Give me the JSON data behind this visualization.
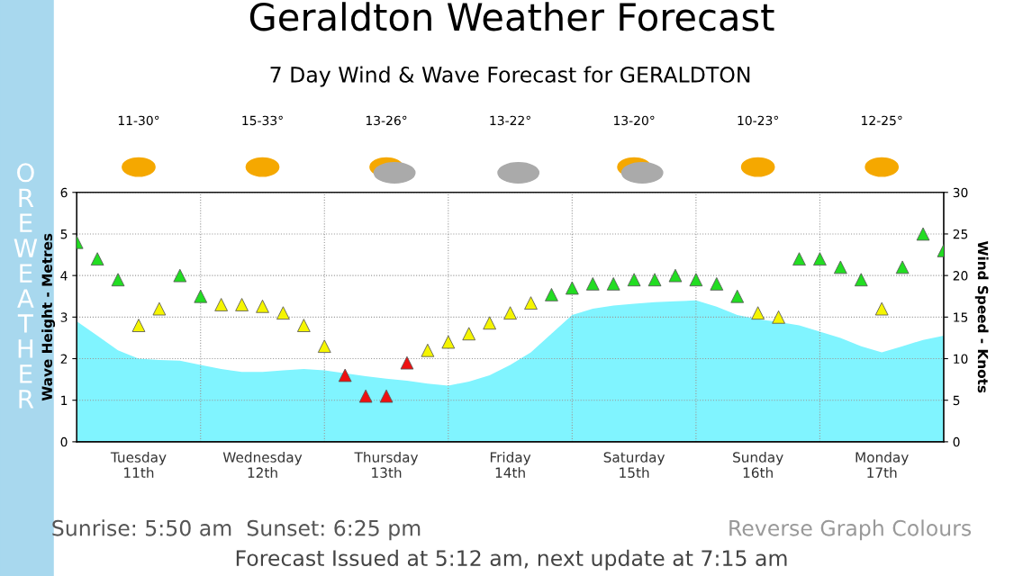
{
  "chart_data": {
    "type": "area",
    "title": "7 Day Wind & Wave Forecast for GERALDTON",
    "ylabel": "Wave Height - Metres",
    "y2label": "Wind Speed - Knots",
    "categories": [
      null,
      null,
      null,
      "Tuesday\n11th",
      null,
      null,
      null,
      null,
      null,
      "Wednesday\n12th",
      null,
      null,
      null,
      null,
      null,
      "Thursday\n13th",
      null,
      null,
      null,
      null,
      null,
      "Friday\n14th",
      null,
      null,
      null,
      null,
      null,
      "Saturday\n15th",
      null,
      null,
      null,
      null,
      null,
      "Sunday\n16th",
      null,
      null,
      null,
      null,
      null,
      "Monday\n17th",
      null,
      null,
      null
    ],
    "ylim": [
      0,
      6
    ],
    "yticks": [
      0,
      1,
      2,
      3,
      4,
      5,
      6
    ],
    "y2lim": [
      0,
      30
    ],
    "y2ticks": [
      0,
      5,
      10,
      15,
      20,
      25,
      30
    ],
    "grid": true,
    "legend": false,
    "series": [
      {
        "color": "#80f4ff",
        "values": [
          2.9,
          2.55,
          2.2,
          2.0,
          1.97,
          1.95,
          1.85,
          1.75,
          1.68,
          1.68,
          1.72,
          1.75,
          1.72,
          1.65,
          1.58,
          1.52,
          1.47,
          1.4,
          1.35,
          1.45,
          1.6,
          1.85,
          2.15,
          2.6,
          3.05,
          3.2,
          3.28,
          3.32,
          3.36,
          3.38,
          3.4,
          3.25,
          3.05,
          2.95,
          2.88,
          2.8,
          2.65,
          2.5,
          2.3,
          2.15,
          2.3,
          2.45,
          2.55
        ]
      },
      {
        "type": "scatter",
        "axis": "y2",
        "marker": "triangle",
        "values": [
          24,
          22,
          19.5,
          14,
          16,
          20,
          17.5,
          16.5,
          16.5,
          16.3,
          15.5,
          14,
          11.5,
          8,
          5.5,
          5.5,
          9.5,
          11,
          12,
          13,
          14.3,
          15.5,
          16.7,
          17.7,
          18.5,
          19,
          19,
          19.5,
          19.5,
          20,
          19.5,
          19,
          17.5,
          15.5,
          15,
          22,
          22,
          21,
          19.5,
          16,
          21,
          25,
          23
        ],
        "colors": [
          "#22dd22",
          "#22dd22",
          "#22dd22",
          "#f5f500",
          "#f5f500",
          "#22dd22",
          "#22dd22",
          "#f5f500",
          "#f5f500",
          "#f5f500",
          "#f5f500",
          "#f5f500",
          "#f5f500",
          "#ee1111",
          "#ee1111",
          "#ee1111",
          "#ee1111",
          "#f5f500",
          "#f5f500",
          "#f5f500",
          "#f5f500",
          "#f5f500",
          "#f5f500",
          "#22dd22",
          "#22dd22",
          "#22dd22",
          "#22dd22",
          "#22dd22",
          "#22dd22",
          "#22dd22",
          "#22dd22",
          "#22dd22",
          "#22dd22",
          "#f5f500",
          "#f5f500",
          "#22dd22",
          "#22dd22",
          "#22dd22",
          "#22dd22",
          "#f5f500",
          "#22dd22",
          "#22dd22",
          "#22dd22"
        ]
      }
    ],
    "annotations": [
      "Geraldton Weather Forecast",
      "ORE WEATHER",
      "Sunrise: 5:50 am  Sunset: 6:25 pm",
      "Reverse Graph Colours",
      "Forecast Issued at 5:12 am, next update at 7:15 am",
      "11-30°",
      "15-33°",
      "13-26°",
      "13-22°",
      "13-20°",
      "10-23°",
      "12-25°"
    ]
  }
}
